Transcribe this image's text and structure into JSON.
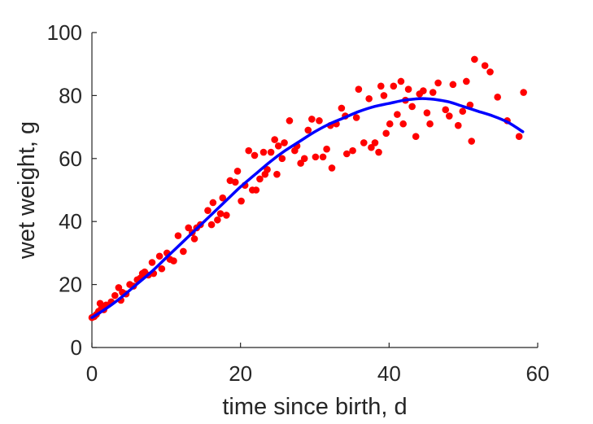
{
  "chart_data": {
    "type": "scatter",
    "title": "",
    "xlabel": "time since birth, d",
    "ylabel": "wet weight, g",
    "xlim": [
      0,
      60
    ],
    "ylim": [
      0,
      100
    ],
    "xticks": [
      0,
      20,
      40,
      60
    ],
    "yticks": [
      0,
      20,
      40,
      60,
      80,
      100
    ],
    "grid": false,
    "legend": "none",
    "colors": {
      "points": "#ff0000",
      "curve": "#0000ff",
      "axis": "#262626"
    },
    "series": [
      {
        "kind": "points",
        "x": [
          0.0,
          0.3,
          0.6,
          0.9,
          1.1,
          1.3,
          1.6,
          1.9,
          2.6,
          3.1,
          3.6,
          3.9,
          4.1,
          4.6,
          5.1,
          5.6,
          6.1,
          6.5,
          6.8,
          7.1,
          7.6,
          8.1,
          8.3,
          9.1,
          9.4,
          10.1,
          10.5,
          11.0,
          11.6,
          12.3,
          13.0,
          13.5,
          13.8,
          14.1,
          14.6,
          15.6,
          16.1,
          16.3,
          16.9,
          17.3,
          17.6,
          18.1,
          18.6,
          19.3,
          19.6,
          20.1,
          20.6,
          21.1,
          21.6,
          21.9,
          22.1,
          22.6,
          23.1,
          23.3,
          23.6,
          24.1,
          24.6,
          24.9,
          25.1,
          25.6,
          25.9,
          26.6,
          27.3,
          27.6,
          28.1,
          28.6,
          29.1,
          29.6,
          30.1,
          30.6,
          31.1,
          31.6,
          32.1,
          32.3,
          32.9,
          33.6,
          34.1,
          34.3,
          35.1,
          35.6,
          35.9,
          36.6,
          37.3,
          37.6,
          38.1,
          38.6,
          38.9,
          39.3,
          39.6,
          40.1,
          40.6,
          41.1,
          41.6,
          41.9,
          42.2,
          42.6,
          43.1,
          43.6,
          44.1,
          44.6,
          45.1,
          45.5,
          45.9,
          46.6,
          47.6,
          48.1,
          48.6,
          49.3,
          49.9,
          50.4,
          50.9,
          51.1,
          51.5,
          52.9,
          53.6,
          54.6,
          55.9,
          57.5,
          58.1
        ],
        "y": [
          9.5,
          9.8,
          10.5,
          11.5,
          14.0,
          12.5,
          12.0,
          13.5,
          14.5,
          16.5,
          19.0,
          15.0,
          17.5,
          17.0,
          20.0,
          19.5,
          21.5,
          22.0,
          23.5,
          24.0,
          23.0,
          27.0,
          23.5,
          29.0,
          25.0,
          30.0,
          28.0,
          27.5,
          35.5,
          30.5,
          38.0,
          36.5,
          34.5,
          38.0,
          39.0,
          43.5,
          39.0,
          46.0,
          40.5,
          42.5,
          47.5,
          42.0,
          53.0,
          52.5,
          56.0,
          46.5,
          51.5,
          62.5,
          50.0,
          61.0,
          50.0,
          53.5,
          62.0,
          55.0,
          56.5,
          62.0,
          66.0,
          55.0,
          64.0,
          60.0,
          65.0,
          72.0,
          62.5,
          64.0,
          58.5,
          60.0,
          69.0,
          72.5,
          60.5,
          72.0,
          60.5,
          63.0,
          70.5,
          57.0,
          71.0,
          76.0,
          73.5,
          61.5,
          62.5,
          73.0,
          82.0,
          65.0,
          79.0,
          63.5,
          65.0,
          62.0,
          83.0,
          80.0,
          68.0,
          71.0,
          83.0,
          74.0,
          84.5,
          71.0,
          78.5,
          82.0,
          76.5,
          67.0,
          80.5,
          81.5,
          74.5,
          71.0,
          81.0,
          84.0,
          75.5,
          73.5,
          83.5,
          70.5,
          75.0,
          84.5,
          77.0,
          65.5,
          91.5,
          89.5,
          87.5,
          79.5,
          72.0,
          67.0,
          81.0
        ]
      },
      {
        "kind": "curve",
        "x": [
          0,
          2,
          4,
          6,
          8,
          10,
          12,
          14,
          16,
          18,
          20,
          22,
          24,
          26,
          28,
          30,
          32,
          34,
          36,
          38,
          40,
          42,
          44,
          45,
          46,
          48,
          50,
          52,
          54,
          56,
          58
        ],
        "y": [
          9.5,
          12.5,
          16.0,
          20.0,
          24.0,
          28.5,
          33.0,
          37.5,
          42.0,
          46.5,
          51.0,
          55.0,
          59.0,
          62.5,
          65.5,
          68.5,
          71.0,
          73.0,
          75.0,
          76.5,
          77.5,
          78.5,
          79.0,
          79.0,
          78.8,
          78.0,
          76.5,
          75.0,
          73.5,
          71.5,
          68.5
        ]
      }
    ]
  }
}
